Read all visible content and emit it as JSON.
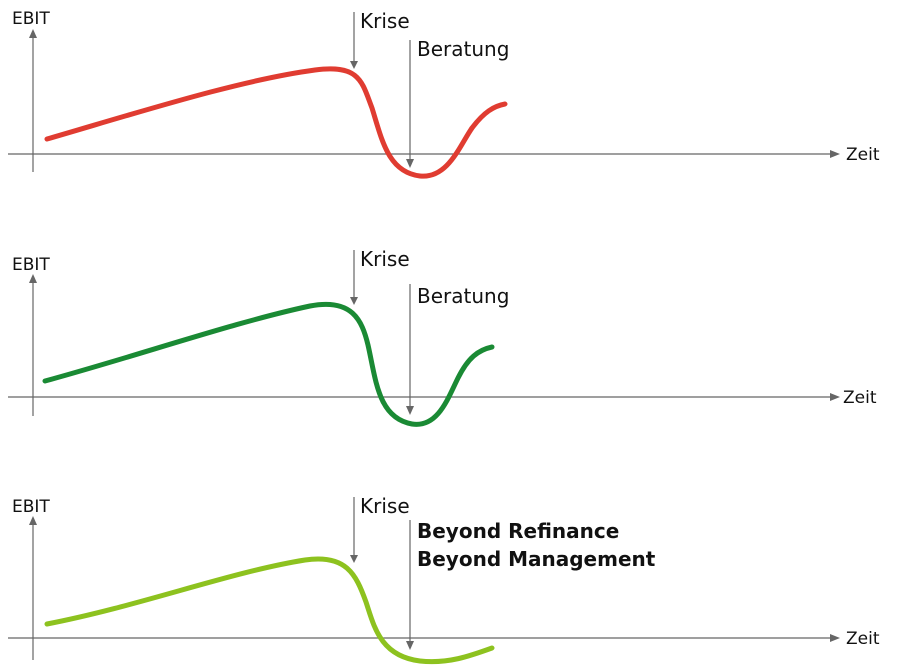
{
  "panels": [
    {
      "y_label": "EBIT",
      "x_label": "Zeit",
      "event_1": "Krise",
      "event_2": [
        "Beratung"
      ],
      "event_2_bold": false,
      "curve_color": "#e03c31"
    },
    {
      "y_label": "EBIT",
      "x_label": "Zeit",
      "event_1": "Krise",
      "event_2": [
        "Beratung"
      ],
      "event_2_bold": false,
      "curve_color": "#1a8a34"
    },
    {
      "y_label": "EBIT",
      "x_label": "Zeit",
      "event_1": "Krise",
      "event_2": [
        "Beyond Refinance",
        "Beyond Management"
      ],
      "event_2_bold": true,
      "curve_color": "#8dc21f"
    }
  ]
}
